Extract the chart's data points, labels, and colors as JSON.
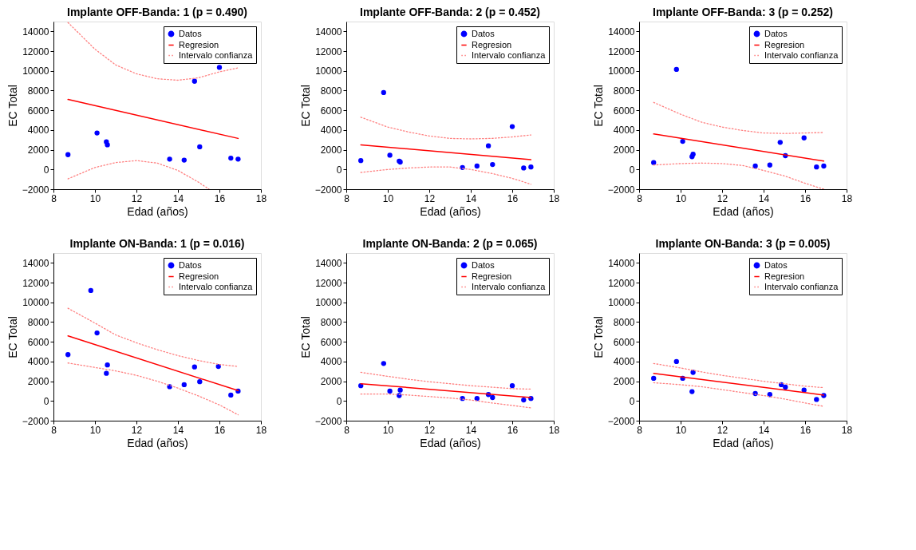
{
  "chart_data": [
    {
      "type": "scatter",
      "title": "Implante OFF-Banda: 1 (p = 0.490)",
      "xlabel": "Edad (años)",
      "ylabel": "EC Total",
      "xlim": [
        8,
        18
      ],
      "ylim": [
        -2000,
        15000
      ],
      "xticks": [
        8,
        10,
        12,
        14,
        16,
        18
      ],
      "yticks": [
        -2000,
        0,
        2000,
        4000,
        6000,
        8000,
        10000,
        12000,
        14000
      ],
      "legend": "top right",
      "grid": false,
      "series": [
        {
          "name": "Datos",
          "marker": "circle",
          "color": "#0000ff",
          "x": [
            8.7,
            10.1,
            10.55,
            10.6,
            13.6,
            14.3,
            14.8,
            15.05,
            16.0,
            16.55,
            16.9
          ],
          "values": [
            1500,
            3700,
            2800,
            2500,
            1050,
            950,
            8950,
            2300,
            10350,
            1150,
            1050
          ]
        },
        {
          "name": "Regresion",
          "type": "line",
          "line_style": "solid",
          "color": "#ff0000",
          "x": [
            8.7,
            16.9
          ],
          "values": [
            7100,
            3150
          ]
        },
        {
          "name": "Intervalo confianza",
          "type": "line",
          "line_style": "dotted",
          "color": "#ff8080",
          "x": [
            8.7,
            10,
            11,
            12,
            13,
            14,
            15,
            16,
            16.9
          ],
          "values": [
            14900,
            12200,
            10600,
            9700,
            9200,
            9050,
            9300,
            9900,
            10300
          ]
        },
        {
          "type": "line",
          "line_style": "dotted",
          "color": "#ff8080",
          "x": [
            8.7,
            10,
            11,
            12,
            13,
            14,
            15,
            15.5
          ],
          "values": [
            -950,
            200,
            700,
            900,
            650,
            -100,
            -1300,
            -2000
          ]
        }
      ]
    },
    {
      "type": "scatter",
      "title": "Implante OFF-Banda: 2 (p = 0.452)",
      "xlabel": "Edad (años)",
      "ylabel": "EC Total",
      "xlim": [
        8,
        18
      ],
      "ylim": [
        -2000,
        15000
      ],
      "xticks": [
        8,
        10,
        12,
        14,
        16,
        18
      ],
      "yticks": [
        -2000,
        0,
        2000,
        4000,
        6000,
        8000,
        10000,
        12000,
        14000
      ],
      "legend": "top right",
      "grid": false,
      "series": [
        {
          "name": "Datos",
          "marker": "circle",
          "color": "#0000ff",
          "x": [
            8.7,
            9.8,
            10.1,
            10.55,
            10.6,
            13.6,
            14.3,
            14.85,
            15.05,
            16.0,
            16.55,
            16.9
          ],
          "values": [
            900,
            7800,
            1450,
            850,
            750,
            200,
            350,
            2400,
            500,
            4350,
            150,
            250
          ]
        },
        {
          "name": "Regresion",
          "type": "line",
          "line_style": "solid",
          "color": "#ff0000",
          "x": [
            8.7,
            16.9
          ],
          "values": [
            2500,
            1000
          ]
        },
        {
          "name": "Intervalo confianza",
          "type": "line",
          "line_style": "dotted",
          "color": "#ff8080",
          "x": [
            8.7,
            10,
            11,
            12,
            13,
            14,
            15,
            16,
            16.9
          ],
          "values": [
            5300,
            4300,
            3800,
            3400,
            3150,
            3100,
            3150,
            3300,
            3500
          ]
        },
        {
          "type": "line",
          "line_style": "dotted",
          "color": "#ff8080",
          "x": [
            8.7,
            10,
            11,
            12,
            13,
            14,
            15,
            16,
            16.9
          ],
          "values": [
            -300,
            0,
            150,
            250,
            250,
            0,
            -400,
            -900,
            -1500
          ]
        }
      ]
    },
    {
      "type": "scatter",
      "title": "Implante OFF-Banda: 3 (p = 0.252)",
      "xlabel": "Edad (años)",
      "ylabel": "EC Total",
      "xlim": [
        8,
        18
      ],
      "ylim": [
        -2000,
        15000
      ],
      "xticks": [
        8,
        10,
        12,
        14,
        16,
        18
      ],
      "yticks": [
        -2000,
        0,
        2000,
        4000,
        6000,
        8000,
        10000,
        12000,
        14000
      ],
      "legend": "top right",
      "grid": false,
      "series": [
        {
          "name": "Datos",
          "marker": "circle",
          "color": "#0000ff",
          "x": [
            8.7,
            9.8,
            10.1,
            10.55,
            10.6,
            13.6,
            14.3,
            14.8,
            15.05,
            15.95,
            16.55,
            16.9
          ],
          "values": [
            700,
            10150,
            2850,
            1300,
            1550,
            350,
            450,
            2750,
            1400,
            3200,
            250,
            350
          ]
        },
        {
          "name": "Regresion",
          "type": "line",
          "line_style": "solid",
          "color": "#ff0000",
          "x": [
            8.7,
            16.9
          ],
          "values": [
            3600,
            850
          ]
        },
        {
          "name": "Intervalo confianza",
          "type": "line",
          "line_style": "dotted",
          "color": "#ff8080",
          "x": [
            8.7,
            10,
            11,
            12,
            13,
            14,
            15,
            16,
            16.9
          ],
          "values": [
            6800,
            5600,
            4800,
            4300,
            3950,
            3700,
            3650,
            3700,
            3750
          ]
        },
        {
          "type": "line",
          "line_style": "dotted",
          "color": "#ff8080",
          "x": [
            8.7,
            10,
            11,
            12,
            13,
            14,
            15,
            16,
            16.9
          ],
          "values": [
            450,
            600,
            650,
            600,
            400,
            -100,
            -650,
            -1400,
            -2000
          ]
        }
      ]
    },
    {
      "type": "scatter",
      "title": "Implante ON-Banda: 1 (p = 0.016)",
      "xlabel": "Edad (años)",
      "ylabel": "EC Total",
      "xlim": [
        8,
        18
      ],
      "ylim": [
        -2000,
        15000
      ],
      "xticks": [
        8,
        10,
        12,
        14,
        16,
        18
      ],
      "yticks": [
        -2000,
        0,
        2000,
        4000,
        6000,
        8000,
        10000,
        12000,
        14000
      ],
      "legend": "top right",
      "grid": false,
      "series": [
        {
          "name": "Datos",
          "marker": "circle",
          "color": "#0000ff",
          "x": [
            8.7,
            9.8,
            10.1,
            10.55,
            10.6,
            13.6,
            14.3,
            14.8,
            15.05,
            15.95,
            16.55,
            16.9
          ],
          "values": [
            4700,
            11200,
            6900,
            2800,
            3650,
            1450,
            1650,
            3450,
            1950,
            3500,
            600,
            1000
          ]
        },
        {
          "name": "Regresion",
          "type": "line",
          "line_style": "solid",
          "color": "#ff0000",
          "x": [
            8.7,
            16.9
          ],
          "values": [
            6600,
            1050
          ]
        },
        {
          "name": "Intervalo confianza",
          "type": "line",
          "line_style": "dotted",
          "color": "#ff8080",
          "x": [
            8.7,
            10,
            11,
            12,
            13,
            14,
            15,
            16,
            16.9
          ],
          "values": [
            9400,
            7900,
            6700,
            5900,
            5200,
            4600,
            4100,
            3700,
            3500
          ]
        },
        {
          "type": "line",
          "line_style": "dotted",
          "color": "#ff8080",
          "x": [
            8.7,
            10,
            11,
            12,
            13,
            14,
            15,
            16,
            16.9
          ],
          "values": [
            3850,
            3400,
            3050,
            2600,
            2000,
            1300,
            500,
            -400,
            -1400
          ]
        }
      ]
    },
    {
      "type": "scatter",
      "title": "Implante ON-Banda: 2 (p = 0.065)",
      "xlabel": "Edad (años)",
      "ylabel": "EC Total",
      "xlim": [
        8,
        18
      ],
      "ylim": [
        -2000,
        15000
      ],
      "xticks": [
        8,
        10,
        12,
        14,
        16,
        18
      ],
      "yticks": [
        -2000,
        0,
        2000,
        4000,
        6000,
        8000,
        10000,
        12000,
        14000
      ],
      "legend": "top right",
      "grid": false,
      "series": [
        {
          "name": "Datos",
          "marker": "circle",
          "color": "#0000ff",
          "x": [
            8.7,
            9.8,
            10.1,
            10.55,
            10.6,
            13.6,
            14.3,
            14.85,
            15.05,
            16.0,
            16.55,
            16.9
          ],
          "values": [
            1550,
            3800,
            1000,
            550,
            1100,
            250,
            250,
            650,
            350,
            1550,
            100,
            250
          ]
        },
        {
          "name": "Regresion",
          "type": "line",
          "line_style": "solid",
          "color": "#ff0000",
          "x": [
            8.7,
            16.9
          ],
          "values": [
            1750,
            350
          ]
        },
        {
          "name": "Intervalo confianza",
          "type": "line",
          "line_style": "dotted",
          "color": "#ff8080",
          "x": [
            8.7,
            10,
            11,
            12,
            13,
            14,
            15,
            16,
            16.9
          ],
          "values": [
            2900,
            2500,
            2200,
            1950,
            1750,
            1550,
            1400,
            1250,
            1200
          ]
        },
        {
          "type": "line",
          "line_style": "dotted",
          "color": "#ff8080",
          "x": [
            8.7,
            10,
            11,
            12,
            13,
            14,
            15,
            16,
            16.9
          ],
          "values": [
            700,
            700,
            600,
            450,
            300,
            100,
            -200,
            -450,
            -700
          ]
        }
      ]
    },
    {
      "type": "scatter",
      "title": "Implante ON-Banda: 3 (p = 0.005)",
      "xlabel": "Edad (años)",
      "ylabel": "EC Total",
      "xlim": [
        8,
        18
      ],
      "ylim": [
        -2000,
        15000
      ],
      "xticks": [
        8,
        10,
        12,
        14,
        16,
        18
      ],
      "yticks": [
        -2000,
        0,
        2000,
        4000,
        6000,
        8000,
        10000,
        12000,
        14000
      ],
      "legend": "top right",
      "grid": false,
      "series": [
        {
          "name": "Datos",
          "marker": "circle",
          "color": "#0000ff",
          "x": [
            8.7,
            9.8,
            10.1,
            10.55,
            10.6,
            13.6,
            14.3,
            14.85,
            15.05,
            15.95,
            16.55,
            16.9
          ],
          "values": [
            2300,
            4000,
            2300,
            950,
            2900,
            750,
            650,
            1650,
            1400,
            1100,
            150,
            550
          ]
        },
        {
          "name": "Regresion",
          "type": "line",
          "line_style": "solid",
          "color": "#ff0000",
          "x": [
            8.7,
            16.9
          ],
          "values": [
            2800,
            600
          ]
        },
        {
          "name": "Intervalo confianza",
          "type": "line",
          "line_style": "dotted",
          "color": "#ff8080",
          "x": [
            8.7,
            10,
            11,
            12,
            13,
            14,
            15,
            16,
            16.9
          ],
          "values": [
            3800,
            3350,
            2950,
            2600,
            2300,
            2000,
            1750,
            1500,
            1350
          ]
        },
        {
          "type": "line",
          "line_style": "dotted",
          "color": "#ff8080",
          "x": [
            8.7,
            10,
            11,
            12,
            13,
            14,
            15,
            16,
            16.9
          ],
          "values": [
            1850,
            1650,
            1450,
            1150,
            850,
            550,
            200,
            -200,
            -550
          ]
        }
      ]
    }
  ]
}
